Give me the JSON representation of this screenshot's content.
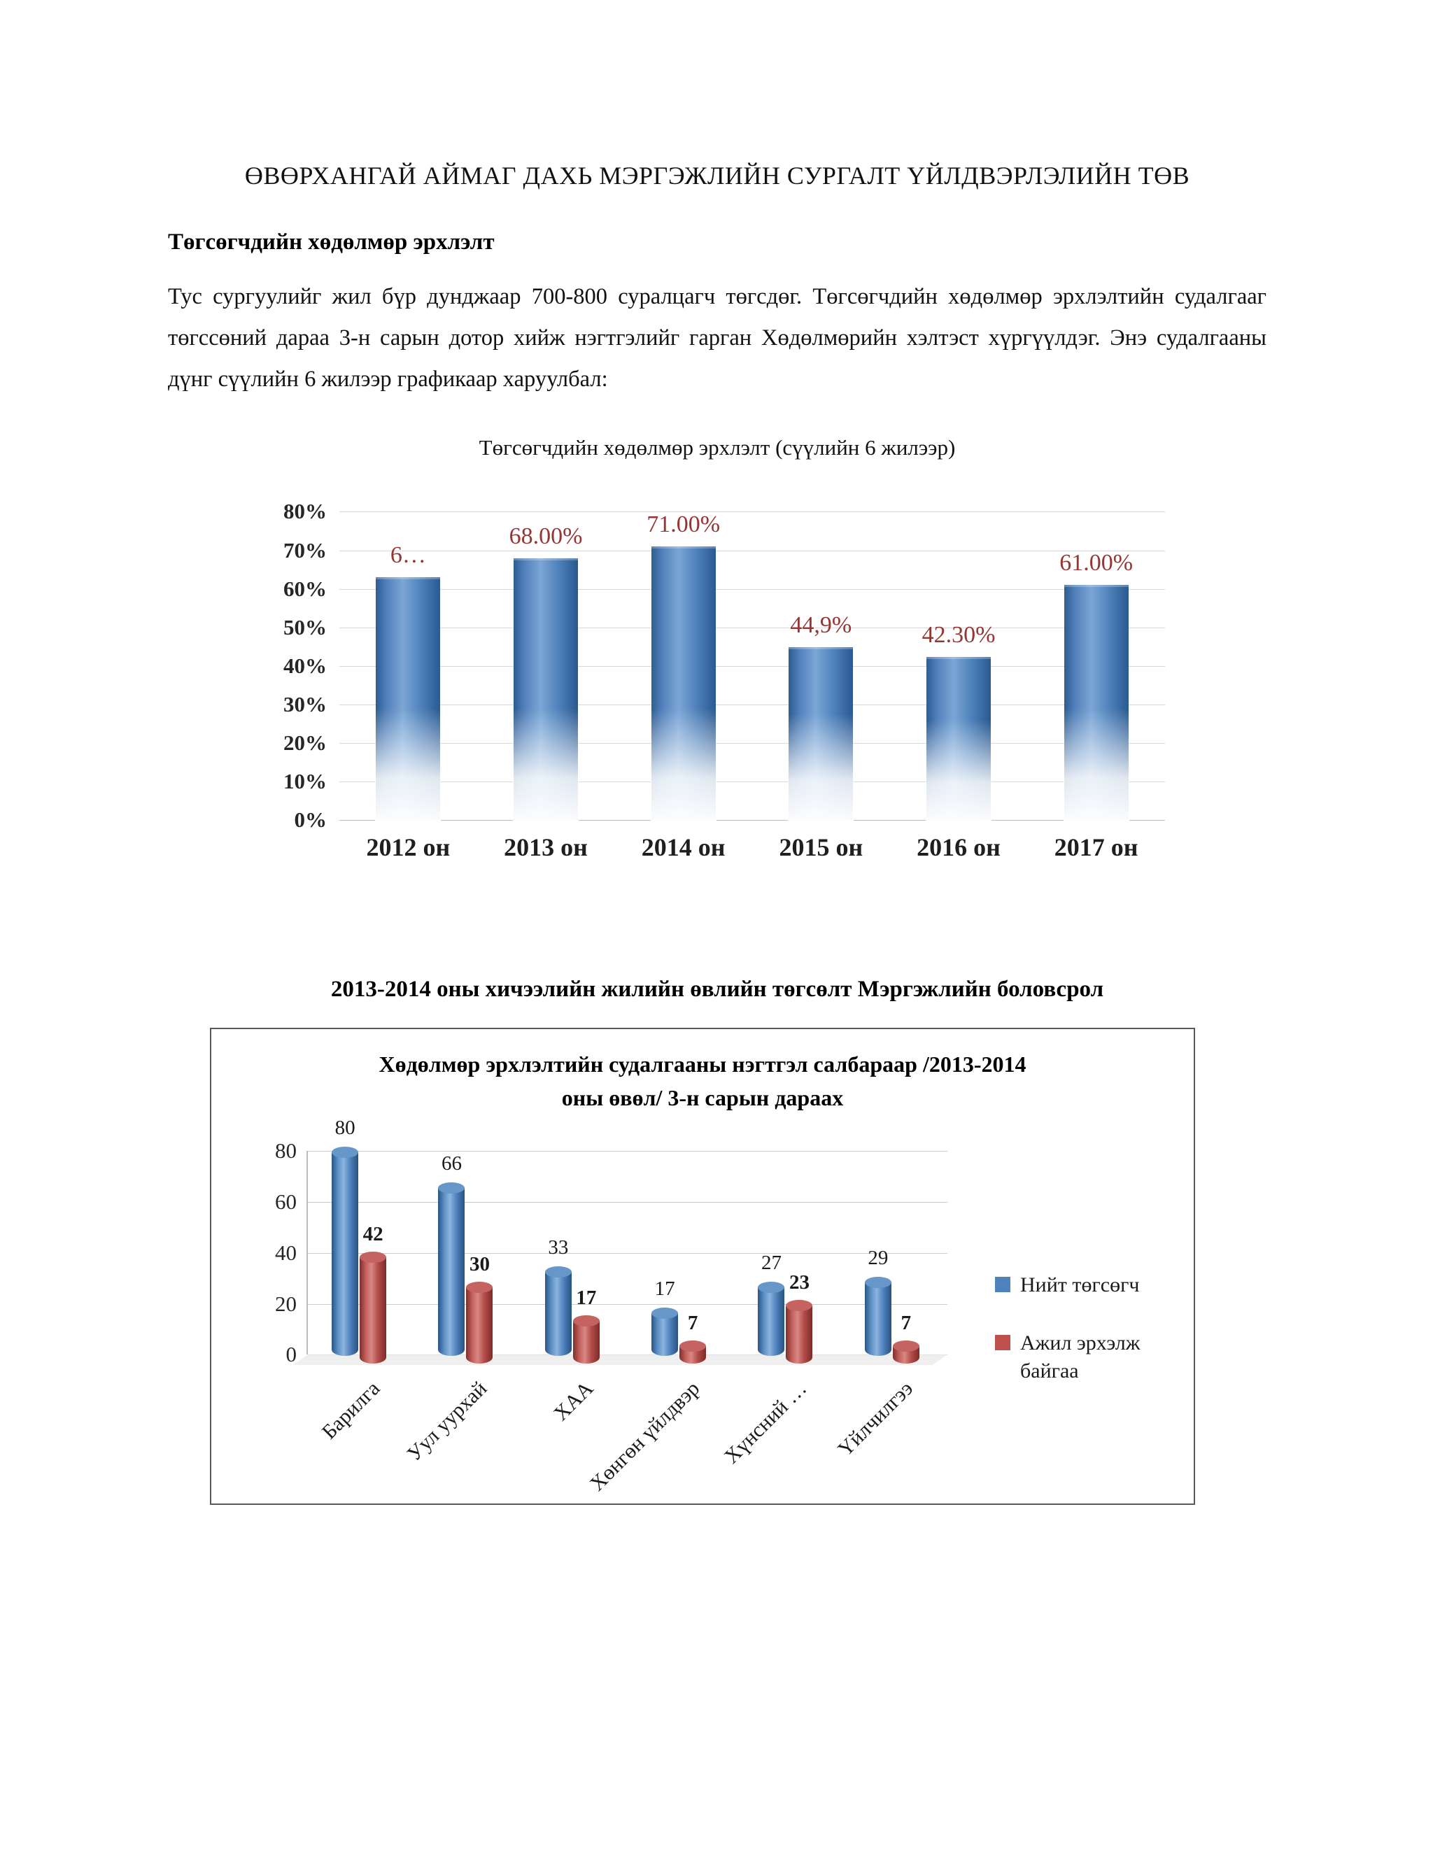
{
  "page": {
    "title": "ӨВӨРХАНГАЙ АЙМАГ ДАХЬ МЭРГЭЖЛИЙН СУРГАЛТ ҮЙЛДВЭРЛЭЛИЙН ТӨВ",
    "section_heading": "Төгсөгчдийн хөдөлмөр эрхлэлт",
    "paragraph": "Тус сургуулийг жил бүр дунджаар 700-800 суралцагч төгсдөг. Төгсөгчдийн хөдөлмөр эрхлэлтийн судалгааг төгссөний дараа 3-н сарын дотор хийж нэгтгэлийг гарган Хөдөлмөрийн хэлтэст хүргүүлдэг. Энэ судалгааны дүнг сүүлийн 6 жилээр графикаар харуулбал:",
    "section2_heading": "2013-2014 оны хичээлийн жилийн өвлийн төгсөлт Мэргэжлийн боловсрол"
  },
  "chart_data": [
    {
      "type": "bar",
      "title": "Төгсөгчдийн хөдөлмөр эрхлэлт (сүүлийн 6 жилээр)",
      "categories": [
        "2012 он",
        "2013 он",
        "2014 он",
        "2015 он",
        "2016 он",
        "2017 он"
      ],
      "values": [
        63,
        68,
        71,
        44.9,
        42.3,
        61
      ],
      "value_labels": [
        "6…",
        "68.00%",
        "71.00%",
        "44,9%",
        "42.30%",
        "61.00%"
      ],
      "ylim": [
        0,
        80
      ],
      "ytick_labels": [
        "80%",
        "70%",
        "60%",
        "50%",
        "40%",
        "30%",
        "20%",
        "10%",
        "0%"
      ],
      "bar_color": "#4f81bd",
      "value_label_color": "#943634",
      "grid": true,
      "legend": "none"
    },
    {
      "type": "bar",
      "style": "3d-cylinder",
      "title": "Хөдөлмөр эрхлэлтийн судалгааны нэгтгэл салбараар /2013-2014 оны өвөл/ 3-н сарын дараах",
      "categories": [
        "Барилга",
        "Уул уурхай",
        "ХАА",
        "Хөнгөн үйлдвэр",
        "Хүнсний …",
        "Үйлчилгээ"
      ],
      "series": [
        {
          "name": "Нийт төгсөгч",
          "color": "#4f81bd",
          "values": [
            80,
            66,
            33,
            17,
            27,
            29
          ]
        },
        {
          "name": "Ажил эрхэлж байгаа",
          "color": "#c0504d",
          "values": [
            42,
            30,
            17,
            7,
            23,
            7
          ]
        }
      ],
      "ylim": [
        0,
        80
      ],
      "yticks": [
        0,
        20,
        40,
        60,
        80
      ],
      "grid": true,
      "legend_position": "right"
    }
  ]
}
